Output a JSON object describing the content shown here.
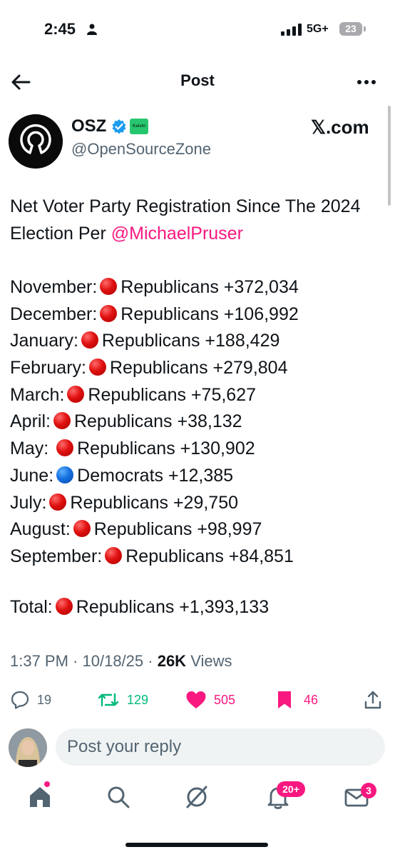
{
  "status_bar": {
    "time": "2:45",
    "network": "5G+",
    "battery": "23"
  },
  "header": {
    "title": "Post"
  },
  "author": {
    "name": "OSZ",
    "badge": "Kalshi",
    "handle": "@OpenSourceZone",
    "source": "𝕏.com"
  },
  "post": {
    "intro": "Net Voter Party Registration Since The 2024 Election Per ",
    "mention": "@MichaelPruser",
    "lines": [
      {
        "month": "November:",
        "dot": "red",
        "text": "Republicans +372,034"
      },
      {
        "month": "December:",
        "dot": "red",
        "text": "Republicans +106,992"
      },
      {
        "month": "January:",
        "dot": "red",
        "text": "Republicans +188,429"
      },
      {
        "month": "February:",
        "dot": "red",
        "text": "Republicans +279,804"
      },
      {
        "month": "March:",
        "dot": "red",
        "text": "Republicans +75,627"
      },
      {
        "month": "April:",
        "dot": "red",
        "text": "Republicans +38,132"
      },
      {
        "month": "May: ",
        "dot": "red",
        "text": "Republicans +130,902"
      },
      {
        "month": "June:",
        "dot": "blue",
        "text": "Democrats +12,385"
      },
      {
        "month": "July:",
        "dot": "red",
        "text": "Republicans +29,750"
      },
      {
        "month": "August:",
        "dot": "red",
        "text": "Republicans +98,997"
      },
      {
        "month": "September:",
        "dot": "red",
        "text": "Republicans +84,851"
      }
    ],
    "total_label": "Total:",
    "total_text": "Republicans +1,393,133"
  },
  "meta": {
    "time": "1:37 PM",
    "date": "10/18/25",
    "views_count": "26K",
    "views_label": "Views"
  },
  "actions": {
    "replies": "19",
    "reposts": "129",
    "likes": "505",
    "bookmarks": "46"
  },
  "reply": {
    "placeholder": "Post your reply"
  },
  "nav": {
    "notifications_badge": "20+",
    "messages_badge": "3"
  },
  "colors": {
    "accent_pink": "#f91880",
    "repost_green": "#00ba7c",
    "verified_blue": "#1d9bf0",
    "kalshi_green": "#28c76f"
  }
}
